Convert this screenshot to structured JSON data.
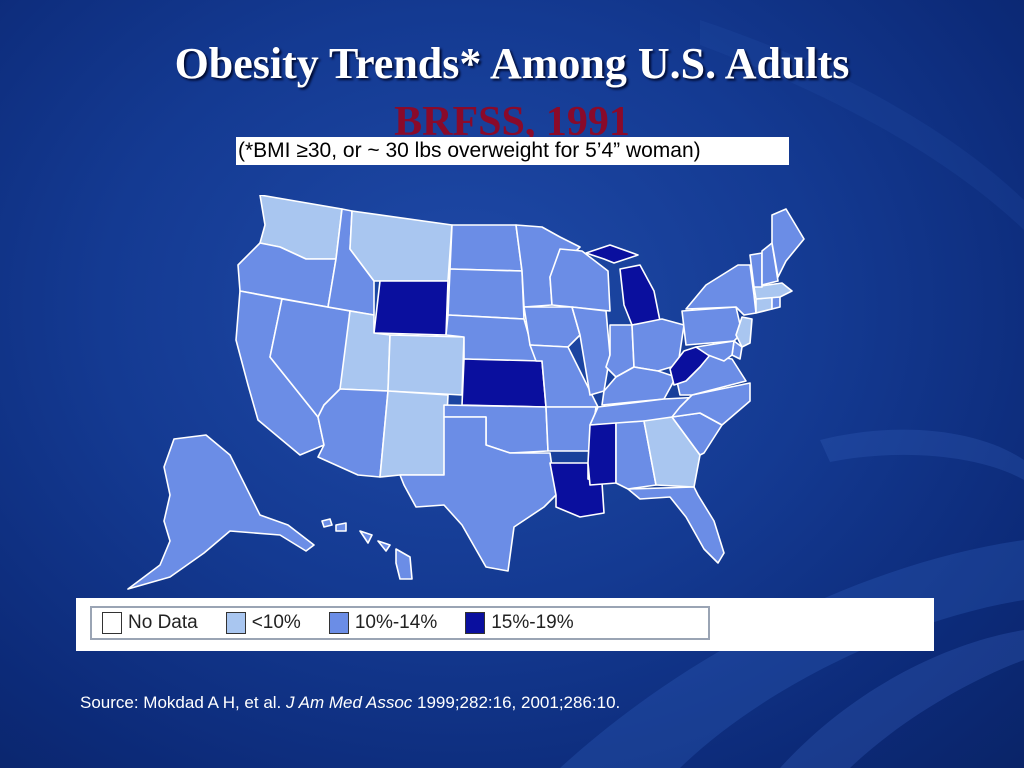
{
  "slide": {
    "title": "Obesity Trends* Among U.S. Adults",
    "subtitle": "BRFSS, 1991",
    "note": "(*BMI ≥30, or ~ 30 lbs overweight for 5’4” woman)"
  },
  "legend": [
    {
      "label": "No Data",
      "color": "#ffffff"
    },
    {
      "label": "<10%",
      "color": "#a9c6f0"
    },
    {
      "label": "10%-14%",
      "color": "#6b8de6"
    },
    {
      "label": "15%-19%",
      "color": "#0a0f9e"
    }
  ],
  "source": {
    "prefix": "Source: Mokdad A H, et al. ",
    "journal": "J Am Med Assoc",
    "citation": " 1999;282:16, 2001;286:10."
  },
  "colors": {
    "no_data": "#ffffff",
    "lt10": "#a9c6f0",
    "p10_14": "#6b8de6",
    "p15_19": "#0a0f9e"
  },
  "state_categories": {
    "WA": "<10%",
    "MT": "<10%",
    "UT": "<10%",
    "CO": "<10%",
    "NM": "<10%",
    "GA": "<10%",
    "CT": "<10%",
    "MA": "<10%",
    "NJ": "<10%",
    "WY": "15%-19%",
    "KS": "15%-19%",
    "MI": "15%-19%",
    "MS": "15%-19%",
    "LA": "15%-19%",
    "WV": "15%-19%",
    "OR": "10%-14%",
    "CA": "10%-14%",
    "NV": "10%-14%",
    "ID": "10%-14%",
    "AZ": "10%-14%",
    "TX": "10%-14%",
    "ND": "10%-14%",
    "SD": "10%-14%",
    "NE": "10%-14%",
    "OK": "10%-14%",
    "MN": "10%-14%",
    "IA": "10%-14%",
    "MO": "10%-14%",
    "AR": "10%-14%",
    "WI": "10%-14%",
    "IL": "10%-14%",
    "IN": "10%-14%",
    "OH": "10%-14%",
    "KY": "10%-14%",
    "TN": "10%-14%",
    "AL": "10%-14%",
    "FL": "10%-14%",
    "SC": "10%-14%",
    "NC": "10%-14%",
    "VA": "10%-14%",
    "PA": "10%-14%",
    "NY": "10%-14%",
    "VT": "10%-14%",
    "NH": "10%-14%",
    "ME": "10%-14%",
    "MD": "10%-14%",
    "DE": "10%-14%",
    "RI": "10%-14%",
    "AK": "10%-14%",
    "HI": "10%-14%"
  }
}
